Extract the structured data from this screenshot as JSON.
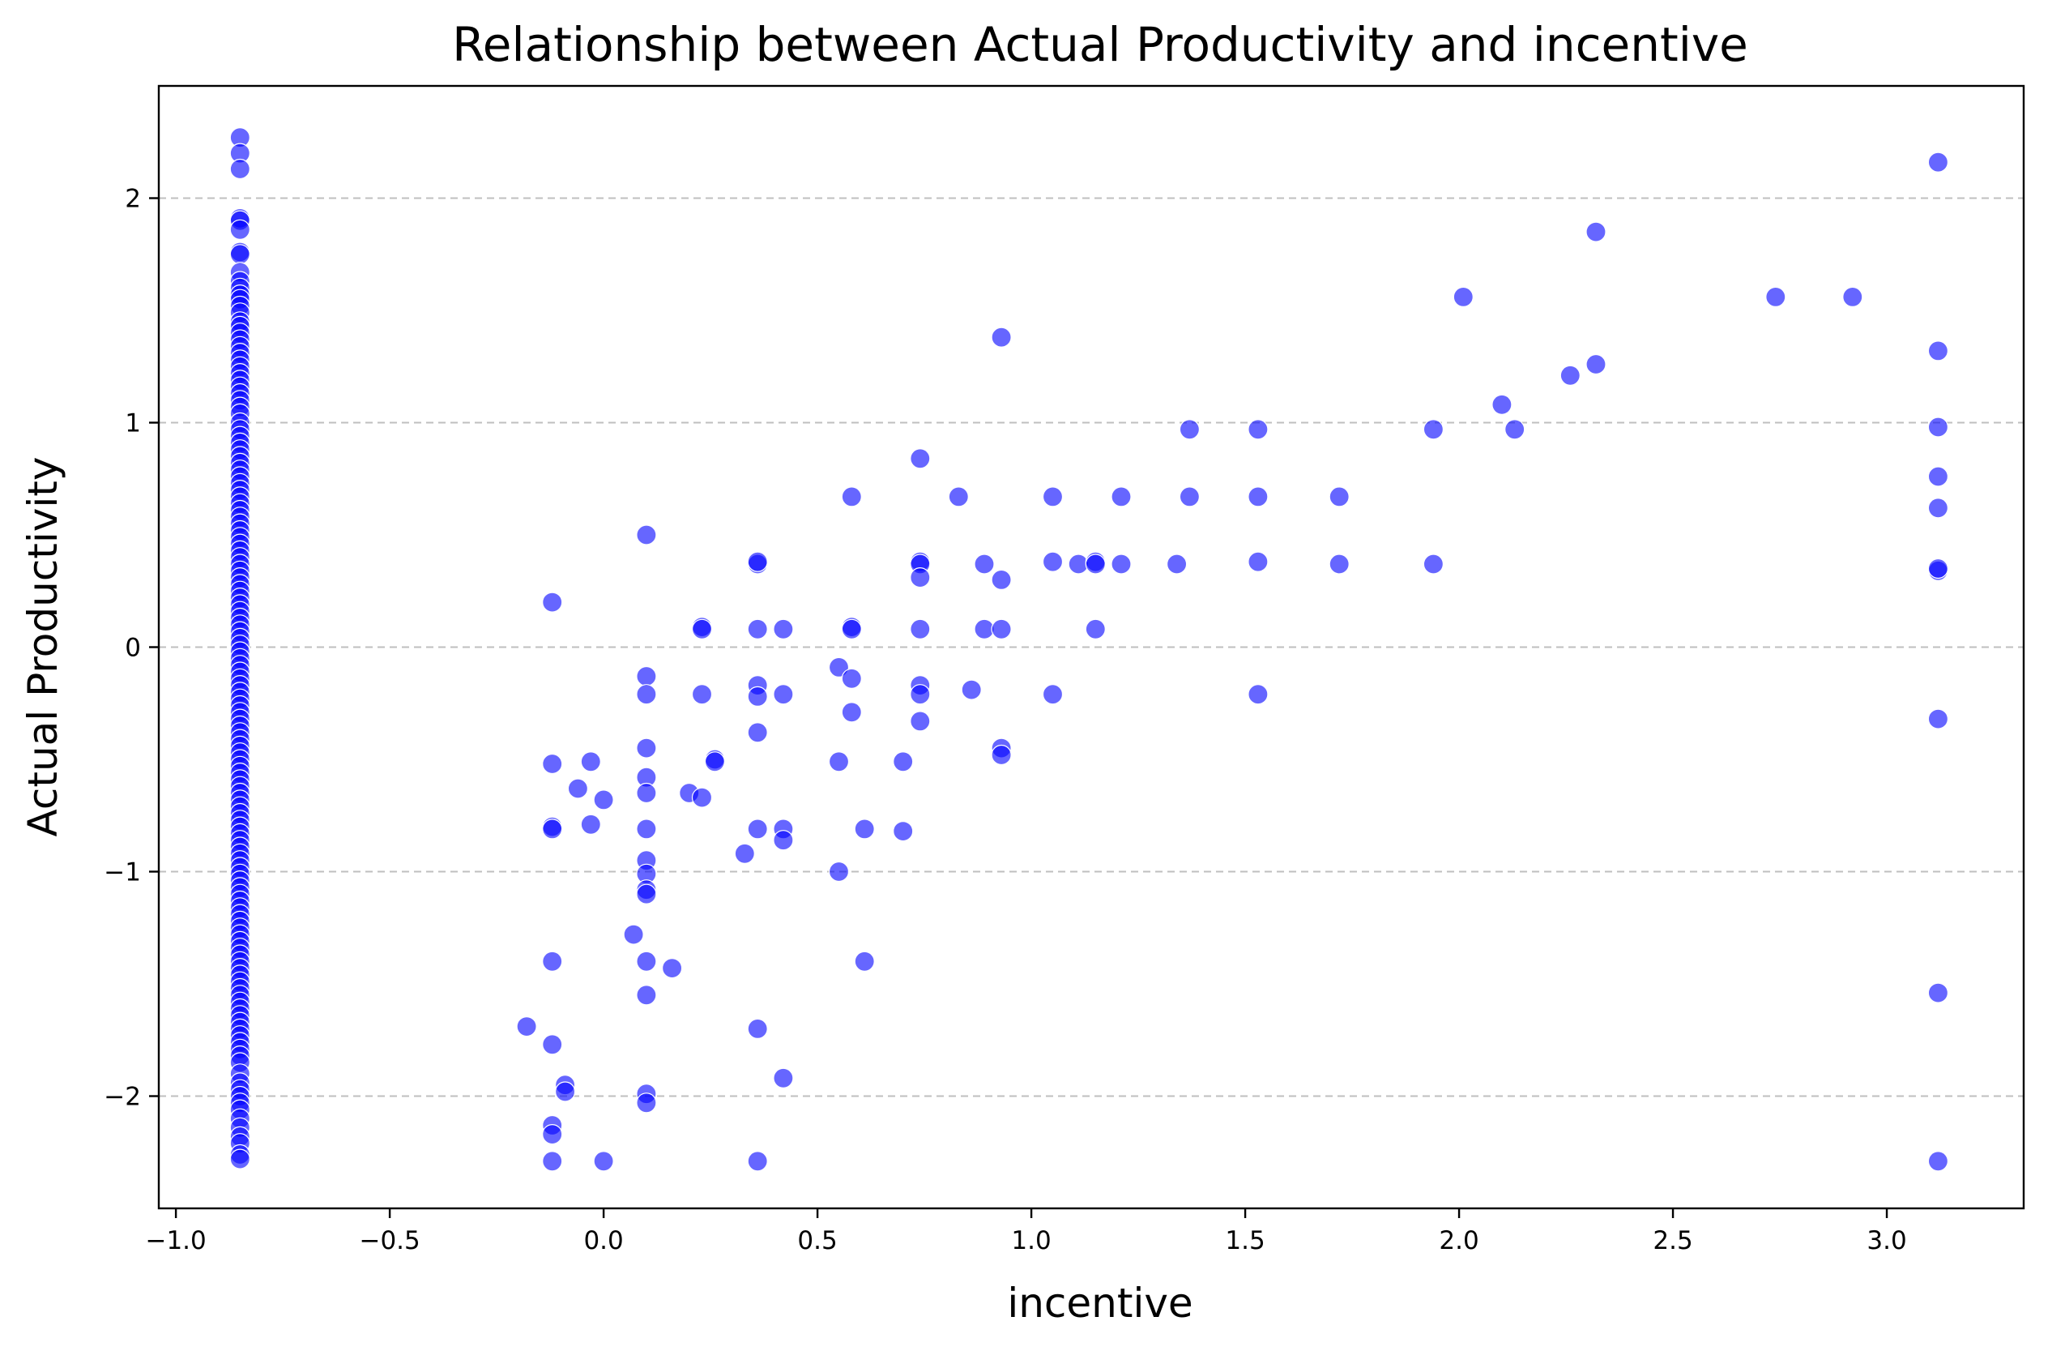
{
  "chart_data": {
    "type": "scatter",
    "title": "Relationship between Actual Productivity and incentive",
    "xlabel": "incentive",
    "ylabel": "Actual Productivity",
    "xlim": [
      -1.04,
      3.32
    ],
    "ylim": [
      -2.5,
      2.5
    ],
    "xticks": [
      -1.0,
      -0.5,
      0.0,
      0.5,
      1.0,
      1.5,
      2.0,
      2.5,
      3.0
    ],
    "xtick_labels": [
      "−1.0",
      "−0.5",
      "0.0",
      "0.5",
      "1.0",
      "1.5",
      "2.0",
      "2.5",
      "3.0"
    ],
    "yticks": [
      -2,
      -1,
      0,
      1,
      2
    ],
    "ytick_labels": [
      "−2",
      "−1",
      "0",
      "1",
      "2"
    ],
    "grid": "y-dashed",
    "point_color": "#0000ff",
    "point_alpha": 0.6,
    "series": [
      {
        "points": [
          [
            -0.85,
            2.27
          ],
          [
            -0.85,
            2.2
          ],
          [
            -0.85,
            2.13
          ],
          [
            -0.85,
            1.91
          ],
          [
            -0.85,
            1.9
          ],
          [
            -0.85,
            1.86
          ],
          [
            -0.85,
            1.76
          ],
          [
            -0.85,
            1.75
          ],
          [
            -0.85,
            1.67
          ],
          [
            -0.85,
            1.63
          ],
          [
            -0.85,
            1.6
          ],
          [
            -0.85,
            1.57
          ],
          [
            -0.85,
            1.55
          ],
          [
            -0.85,
            1.52
          ],
          [
            -0.85,
            1.49
          ],
          [
            -0.85,
            1.45
          ],
          [
            -0.85,
            1.43
          ],
          [
            -0.85,
            1.4
          ],
          [
            -0.85,
            1.37
          ],
          [
            -0.85,
            1.34
          ],
          [
            -0.85,
            1.31
          ],
          [
            -0.85,
            1.28
          ],
          [
            -0.85,
            1.25
          ],
          [
            -0.85,
            1.22
          ],
          [
            -0.85,
            1.19
          ],
          [
            -0.85,
            1.16
          ],
          [
            -0.85,
            1.13
          ],
          [
            -0.85,
            1.1
          ],
          [
            -0.85,
            1.07
          ],
          [
            -0.85,
            1.04
          ],
          [
            -0.85,
            1.0
          ],
          [
            -0.85,
            0.97
          ],
          [
            -0.85,
            0.94
          ],
          [
            -0.85,
            0.91
          ],
          [
            -0.85,
            0.88
          ],
          [
            -0.85,
            0.85
          ],
          [
            -0.85,
            0.82
          ],
          [
            -0.85,
            0.79
          ],
          [
            -0.85,
            0.76
          ],
          [
            -0.85,
            0.73
          ],
          [
            -0.85,
            0.7
          ],
          [
            -0.85,
            0.67
          ],
          [
            -0.85,
            0.64
          ],
          [
            -0.85,
            0.61
          ],
          [
            -0.85,
            0.58
          ],
          [
            -0.85,
            0.55
          ],
          [
            -0.85,
            0.52
          ],
          [
            -0.85,
            0.49
          ],
          [
            -0.85,
            0.46
          ],
          [
            -0.85,
            0.43
          ],
          [
            -0.85,
            0.4
          ],
          [
            -0.85,
            0.37
          ],
          [
            -0.85,
            0.34
          ],
          [
            -0.85,
            0.31
          ],
          [
            -0.85,
            0.28
          ],
          [
            -0.85,
            0.25
          ],
          [
            -0.85,
            0.22
          ],
          [
            -0.85,
            0.19
          ],
          [
            -0.85,
            0.16
          ],
          [
            -0.85,
            0.13
          ],
          [
            -0.85,
            0.1
          ],
          [
            -0.85,
            0.07
          ],
          [
            -0.85,
            0.04
          ],
          [
            -0.85,
            0.01
          ],
          [
            -0.85,
            -0.02
          ],
          [
            -0.85,
            -0.05
          ],
          [
            -0.85,
            -0.08
          ],
          [
            -0.85,
            -0.11
          ],
          [
            -0.85,
            -0.14
          ],
          [
            -0.85,
            -0.17
          ],
          [
            -0.85,
            -0.2
          ],
          [
            -0.85,
            -0.23
          ],
          [
            -0.85,
            -0.26
          ],
          [
            -0.85,
            -0.29
          ],
          [
            -0.85,
            -0.32
          ],
          [
            -0.85,
            -0.35
          ],
          [
            -0.85,
            -0.38
          ],
          [
            -0.85,
            -0.41
          ],
          [
            -0.85,
            -0.44
          ],
          [
            -0.85,
            -0.47
          ],
          [
            -0.85,
            -0.5
          ],
          [
            -0.85,
            -0.53
          ],
          [
            -0.85,
            -0.56
          ],
          [
            -0.85,
            -0.59
          ],
          [
            -0.85,
            -0.62
          ],
          [
            -0.85,
            -0.65
          ],
          [
            -0.85,
            -0.68
          ],
          [
            -0.85,
            -0.71
          ],
          [
            -0.85,
            -0.74
          ],
          [
            -0.85,
            -0.77
          ],
          [
            -0.85,
            -0.8
          ],
          [
            -0.85,
            -0.83
          ],
          [
            -0.85,
            -0.86
          ],
          [
            -0.85,
            -0.89
          ],
          [
            -0.85,
            -0.92
          ],
          [
            -0.85,
            -0.95
          ],
          [
            -0.85,
            -0.98
          ],
          [
            -0.85,
            -1.01
          ],
          [
            -0.85,
            -1.04
          ],
          [
            -0.85,
            -1.07
          ],
          [
            -0.85,
            -1.1
          ],
          [
            -0.85,
            -1.13
          ],
          [
            -0.85,
            -1.16
          ],
          [
            -0.85,
            -1.19
          ],
          [
            -0.85,
            -1.22
          ],
          [
            -0.85,
            -1.25
          ],
          [
            -0.85,
            -1.28
          ],
          [
            -0.85,
            -1.31
          ],
          [
            -0.85,
            -1.34
          ],
          [
            -0.85,
            -1.37
          ],
          [
            -0.85,
            -1.4
          ],
          [
            -0.85,
            -1.43
          ],
          [
            -0.85,
            -1.46
          ],
          [
            -0.85,
            -1.49
          ],
          [
            -0.85,
            -1.52
          ],
          [
            -0.85,
            -1.55
          ],
          [
            -0.85,
            -1.58
          ],
          [
            -0.85,
            -1.61
          ],
          [
            -0.85,
            -1.64
          ],
          [
            -0.85,
            -1.67
          ],
          [
            -0.85,
            -1.7
          ],
          [
            -0.85,
            -1.73
          ],
          [
            -0.85,
            -1.76
          ],
          [
            -0.85,
            -1.79
          ],
          [
            -0.85,
            -1.82
          ],
          [
            -0.85,
            -1.85
          ],
          [
            -0.85,
            -1.9
          ],
          [
            -0.85,
            -1.94
          ],
          [
            -0.85,
            -1.97
          ],
          [
            -0.85,
            -2.0
          ],
          [
            -0.85,
            -2.03
          ],
          [
            -0.85,
            -2.06
          ],
          [
            -0.85,
            -2.1
          ],
          [
            -0.85,
            -2.14
          ],
          [
            -0.85,
            -2.18
          ],
          [
            -0.85,
            -2.21
          ],
          [
            -0.85,
            -2.26
          ],
          [
            -0.85,
            -2.28
          ],
          [
            -0.18,
            -1.69
          ],
          [
            -0.12,
            0.2
          ],
          [
            -0.12,
            -0.52
          ],
          [
            -0.12,
            -0.8
          ],
          [
            -0.12,
            -0.81
          ],
          [
            -0.12,
            -1.4
          ],
          [
            -0.12,
            -1.77
          ],
          [
            -0.12,
            -2.13
          ],
          [
            -0.12,
            -2.17
          ],
          [
            -0.12,
            -2.29
          ],
          [
            -0.09,
            -1.95
          ],
          [
            -0.09,
            -1.98
          ],
          [
            -0.06,
            -0.63
          ],
          [
            -0.03,
            -0.51
          ],
          [
            -0.03,
            -0.79
          ],
          [
            0.0,
            -0.68
          ],
          [
            0.0,
            -2.29
          ],
          [
            0.07,
            -1.28
          ],
          [
            0.1,
            0.5
          ],
          [
            0.1,
            -0.13
          ],
          [
            0.1,
            -0.21
          ],
          [
            0.1,
            -0.45
          ],
          [
            0.1,
            -0.58
          ],
          [
            0.1,
            -0.65
          ],
          [
            0.1,
            -0.81
          ],
          [
            0.1,
            -0.95
          ],
          [
            0.1,
            -1.01
          ],
          [
            0.1,
            -1.08
          ],
          [
            0.1,
            -1.1
          ],
          [
            0.1,
            -1.4
          ],
          [
            0.1,
            -1.55
          ],
          [
            0.1,
            -1.99
          ],
          [
            0.1,
            -2.03
          ],
          [
            0.16,
            -1.43
          ],
          [
            0.2,
            -0.65
          ],
          [
            0.23,
            0.09
          ],
          [
            0.23,
            0.08
          ],
          [
            0.23,
            -0.21
          ],
          [
            0.23,
            -0.67
          ],
          [
            0.26,
            -0.5
          ],
          [
            0.26,
            -0.51
          ],
          [
            0.33,
            -0.92
          ],
          [
            0.36,
            0.37
          ],
          [
            0.36,
            0.38
          ],
          [
            0.36,
            0.08
          ],
          [
            0.36,
            -0.17
          ],
          [
            0.36,
            -0.22
          ],
          [
            0.36,
            -0.38
          ],
          [
            0.36,
            -0.81
          ],
          [
            0.36,
            -1.7
          ],
          [
            0.36,
            -2.29
          ],
          [
            0.42,
            0.08
          ],
          [
            0.42,
            -0.21
          ],
          [
            0.42,
            -0.81
          ],
          [
            0.42,
            -0.86
          ],
          [
            0.42,
            -1.92
          ],
          [
            0.55,
            -0.09
          ],
          [
            0.55,
            -0.51
          ],
          [
            0.55,
            -1.0
          ],
          [
            0.58,
            0.67
          ],
          [
            0.58,
            0.09
          ],
          [
            0.58,
            0.08
          ],
          [
            0.58,
            -0.14
          ],
          [
            0.58,
            -0.29
          ],
          [
            0.61,
            -0.81
          ],
          [
            0.61,
            -1.4
          ],
          [
            0.7,
            -0.51
          ],
          [
            0.7,
            -0.82
          ],
          [
            0.74,
            0.84
          ],
          [
            0.74,
            0.38
          ],
          [
            0.74,
            0.37
          ],
          [
            0.74,
            0.31
          ],
          [
            0.74,
            0.08
          ],
          [
            0.74,
            -0.17
          ],
          [
            0.74,
            -0.21
          ],
          [
            0.74,
            -0.33
          ],
          [
            0.83,
            0.67
          ],
          [
            0.86,
            -0.19
          ],
          [
            0.89,
            0.37
          ],
          [
            0.89,
            0.08
          ],
          [
            0.93,
            1.38
          ],
          [
            0.93,
            0.3
          ],
          [
            0.93,
            0.08
          ],
          [
            0.93,
            -0.45
          ],
          [
            0.93,
            -0.48
          ],
          [
            1.05,
            0.67
          ],
          [
            1.05,
            0.38
          ],
          [
            1.05,
            -0.21
          ],
          [
            1.11,
            0.37
          ],
          [
            1.15,
            0.38
          ],
          [
            1.15,
            0.37
          ],
          [
            1.15,
            0.08
          ],
          [
            1.21,
            0.67
          ],
          [
            1.21,
            0.37
          ],
          [
            1.34,
            0.37
          ],
          [
            1.37,
            0.97
          ],
          [
            1.37,
            0.67
          ],
          [
            1.53,
            0.97
          ],
          [
            1.53,
            0.67
          ],
          [
            1.53,
            0.38
          ],
          [
            1.53,
            -0.21
          ],
          [
            1.72,
            0.67
          ],
          [
            1.72,
            0.37
          ],
          [
            1.94,
            0.97
          ],
          [
            1.94,
            0.37
          ],
          [
            2.01,
            1.56
          ],
          [
            2.1,
            1.08
          ],
          [
            2.13,
            0.97
          ],
          [
            2.26,
            1.21
          ],
          [
            2.32,
            1.85
          ],
          [
            2.32,
            1.26
          ],
          [
            2.74,
            1.56
          ],
          [
            2.92,
            1.56
          ],
          [
            3.12,
            2.16
          ],
          [
            3.12,
            1.32
          ],
          [
            3.12,
            0.98
          ],
          [
            3.12,
            0.76
          ],
          [
            3.12,
            0.62
          ],
          [
            3.12,
            0.34
          ],
          [
            3.12,
            0.35
          ],
          [
            3.12,
            -0.32
          ],
          [
            3.12,
            -1.54
          ],
          [
            3.12,
            -2.29
          ]
        ]
      }
    ]
  }
}
